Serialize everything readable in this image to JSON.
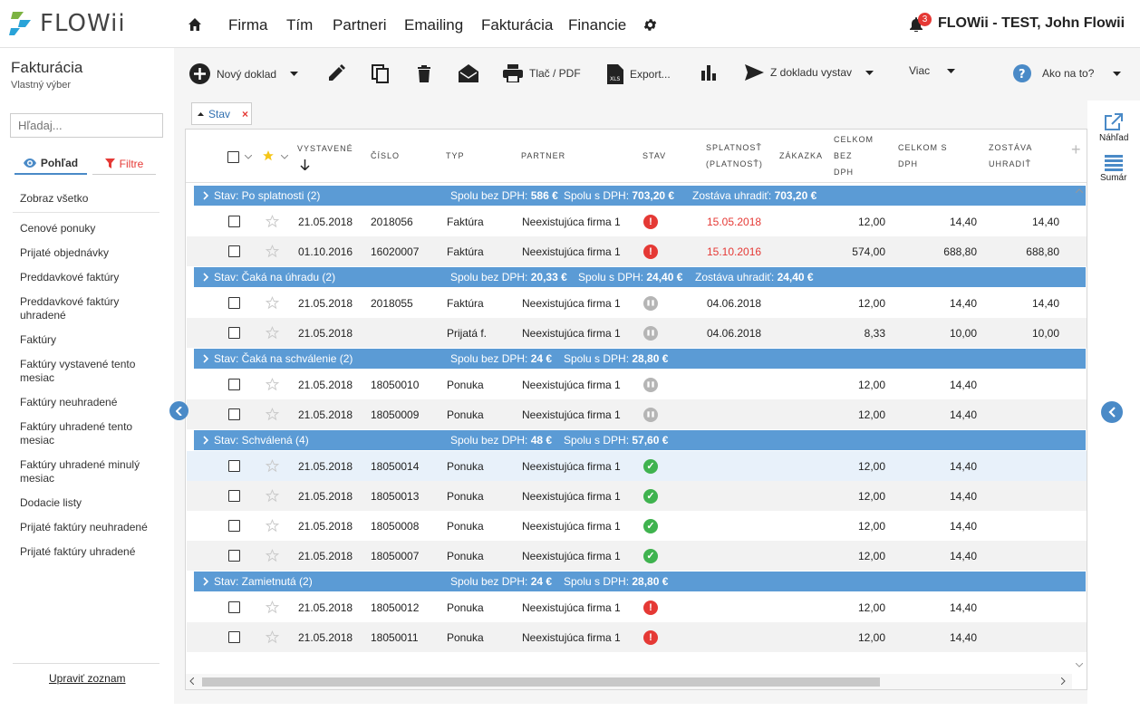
{
  "app": {
    "logo_text": "FLOWii"
  },
  "nav": {
    "items": [
      "Firma",
      "Tím",
      "Partneri",
      "Emailing",
      "Fakturácia",
      "Financie"
    ]
  },
  "user": {
    "notifications": "3",
    "name": "FLOWii - TEST, John Flowii"
  },
  "sidebar": {
    "title": "Fakturácia",
    "subtitle": "Vlastný výber",
    "search_placeholder": "Hľadaj...",
    "tab_view": "Pohľad",
    "tab_filter": "Filtre",
    "items": [
      "Zobraz všetko",
      "Cenové ponuky",
      "Prijaté objednávky",
      "Preddavkové faktúry",
      "Preddavkové faktúry uhradené",
      "Faktúry",
      "Faktúry vystavené tento mesiac",
      "Faktúry neuhradené",
      "Faktúry uhradené tento mesiac",
      "Faktúry uhradené minulý mesiac",
      "Dodacie listy",
      "Prijaté faktúry neuhradené",
      "Prijaté faktúry uhradené"
    ],
    "edit_link": "Upraviť zoznam"
  },
  "toolbar": {
    "new_doc": "Nový doklad",
    "print": "Tlač / PDF",
    "export": "Export...",
    "from_doc": "Z dokladu vystav",
    "more": "Viac",
    "help": "Ako na to?"
  },
  "filter_tag": {
    "label": "Stav"
  },
  "columns": {
    "issued": "VYSTAVENÉ",
    "number": "ČÍSLO",
    "type": "TYP",
    "partner": "PARTNER",
    "status": "STAV",
    "due1": "SPLATNOSŤ",
    "due2": "(PLATNOSŤ)",
    "order": "ZÁKAZKA",
    "t1a": "CELKOM",
    "t1b": "BEZ",
    "t1c": "DPH",
    "t2a": "CELKOM S",
    "t2b": "DPH",
    "t3a": "ZOSTÁVA",
    "t3b": "UHRADIŤ"
  },
  "right_panel": {
    "preview": "Náhľad",
    "summary": "Sumár"
  },
  "groups": [
    {
      "title": "Stav: Po splatnosti (2)",
      "s1_label": "Spolu bez DPH:",
      "s1": "586 €",
      "s2_label": "Spolu s DPH:",
      "s2": "703,20 €",
      "s3_label": "Zostáva uhradiť:",
      "s3": "703,20 €",
      "rows": [
        {
          "date": "21.05.2018",
          "num": "2018056",
          "type": "Faktúra",
          "partner": "Neexistujúca firma 1",
          "status": "red",
          "due": "15.05.2018",
          "due_red": true,
          "net": "12,00",
          "gross": "14,40",
          "remain": "14,40"
        },
        {
          "date": "01.10.2016",
          "num": "16020007",
          "type": "Faktúra",
          "partner": "Neexistujúca firma 1",
          "status": "red",
          "due": "15.10.2016",
          "due_red": true,
          "net": "574,00",
          "gross": "688,80",
          "remain": "688,80"
        }
      ]
    },
    {
      "title": "Stav: Čaká na úhradu (2)",
      "s1_label": "Spolu bez DPH:",
      "s1": "20,33 €",
      "s2_label": "Spolu s DPH:",
      "s2": "24,40 €",
      "s3_label": "Zostáva uhradiť:",
      "s3": "24,40 €",
      "rows": [
        {
          "date": "21.05.2018",
          "num": "2018055",
          "type": "Faktúra",
          "partner": "Neexistujúca firma 1",
          "status": "gray",
          "due": "04.06.2018",
          "due_red": false,
          "net": "12,00",
          "gross": "14,40",
          "remain": "14,40"
        },
        {
          "date": "21.05.2018",
          "num": "",
          "type": "Prijatá f.",
          "partner": "Neexistujúca firma 1",
          "status": "gray",
          "due": "04.06.2018",
          "due_red": false,
          "net": "8,33",
          "gross": "10,00",
          "remain": "10,00"
        }
      ]
    },
    {
      "title": "Stav: Čaká na schválenie (2)",
      "s1_label": "Spolu bez DPH:",
      "s1": "24 €",
      "s2_label": "Spolu s DPH:",
      "s2": "28,80 €",
      "s3_label": "",
      "s3": "",
      "rows": [
        {
          "date": "21.05.2018",
          "num": "18050010",
          "type": "Ponuka",
          "partner": "Neexistujúca firma 1",
          "status": "gray",
          "due": "",
          "due_red": false,
          "net": "12,00",
          "gross": "14,40",
          "remain": ""
        },
        {
          "date": "21.05.2018",
          "num": "18050009",
          "type": "Ponuka",
          "partner": "Neexistujúca firma 1",
          "status": "gray",
          "due": "",
          "due_red": false,
          "net": "12,00",
          "gross": "14,40",
          "remain": ""
        }
      ]
    },
    {
      "title": "Stav: Schválená (4)",
      "s1_label": "Spolu bez DPH:",
      "s1": "48 €",
      "s2_label": "Spolu s DPH:",
      "s2": "57,60 €",
      "s3_label": "",
      "s3": "",
      "rows": [
        {
          "date": "21.05.2018",
          "num": "18050014",
          "type": "Ponuka",
          "partner": "Neexistujúca firma 1",
          "status": "green",
          "due": "",
          "due_red": false,
          "net": "12,00",
          "gross": "14,40",
          "remain": ""
        },
        {
          "date": "21.05.2018",
          "num": "18050013",
          "type": "Ponuka",
          "partner": "Neexistujúca firma 1",
          "status": "green",
          "due": "",
          "due_red": false,
          "net": "12,00",
          "gross": "14,40",
          "remain": ""
        },
        {
          "date": "21.05.2018",
          "num": "18050008",
          "type": "Ponuka",
          "partner": "Neexistujúca firma 1",
          "status": "green",
          "due": "",
          "due_red": false,
          "net": "12,00",
          "gross": "14,40",
          "remain": ""
        },
        {
          "date": "21.05.2018",
          "num": "18050007",
          "type": "Ponuka",
          "partner": "Neexistujúca firma 1",
          "status": "green",
          "due": "",
          "due_red": false,
          "net": "12,00",
          "gross": "14,40",
          "remain": ""
        }
      ]
    },
    {
      "title": "Stav: Zamietnutá (2)",
      "s1_label": "Spolu bez DPH:",
      "s1": "24 €",
      "s2_label": "Spolu s DPH:",
      "s2": "28,80 €",
      "s3_label": "",
      "s3": "",
      "rows": [
        {
          "date": "21.05.2018",
          "num": "18050012",
          "type": "Ponuka",
          "partner": "Neexistujúca firma 1",
          "status": "red",
          "due": "",
          "due_red": false,
          "net": "12,00",
          "gross": "14,40",
          "remain": ""
        },
        {
          "date": "21.05.2018",
          "num": "18050011",
          "type": "Ponuka",
          "partner": "Neexistujúca firma 1",
          "status": "red",
          "due": "",
          "due_red": false,
          "net": "12,00",
          "gross": "14,40",
          "remain": ""
        }
      ]
    }
  ],
  "colors": {
    "accent": "#5b9bd5",
    "overdue": "#e53935",
    "ok": "#3fb34f",
    "star": "#f5c518"
  }
}
